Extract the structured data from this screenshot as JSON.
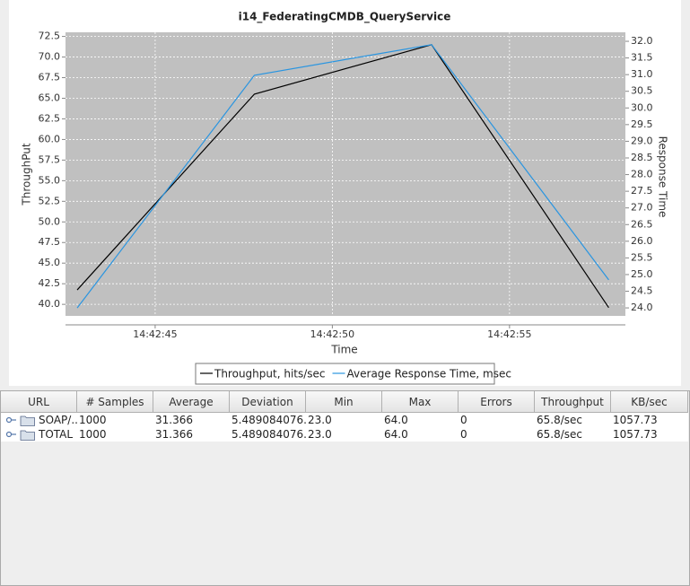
{
  "chart_data": {
    "type": "line",
    "title": "i14_FederatingCMDB_QueryService",
    "x_label": "Time",
    "y_label": "ThroughPut",
    "y2_label": "Response Time",
    "x": [
      42.8,
      47.8,
      52.8,
      57.8
    ],
    "xlim": [
      42.47,
      58.27
    ],
    "xticks": [
      {
        "value": 45,
        "label": "14:42:45"
      },
      {
        "value": 50,
        "label": "14:42:50"
      },
      {
        "value": 55,
        "label": "14:42:55"
      }
    ],
    "ylim": [
      38.6,
      73.0
    ],
    "yticks": [
      {
        "value": 40,
        "label": "40.0"
      },
      42.5,
      {
        "value": 45,
        "label": "45.0"
      },
      47.5,
      {
        "value": 50,
        "label": "50.0"
      },
      52.5,
      {
        "value": 55,
        "label": "55.0"
      },
      57.5,
      {
        "value": 60,
        "label": "60.0"
      },
      62.5,
      {
        "value": 65,
        "label": "65.0"
      },
      67.5,
      {
        "value": 70,
        "label": "70.0"
      },
      72.5
    ],
    "y2lim": [
      23.76,
      32.27
    ],
    "y2ticks": [
      {
        "value": 24,
        "label": "24.0"
      },
      24.5,
      {
        "value": 25,
        "label": "25.0"
      },
      25.5,
      {
        "value": 26,
        "label": "26.0"
      },
      26.5,
      {
        "value": 27,
        "label": "27.0"
      },
      27.5,
      {
        "value": 28,
        "label": "28.0"
      },
      28.5,
      {
        "value": 29,
        "label": "29.0"
      },
      29.5,
      {
        "value": 30,
        "label": "30.0"
      },
      30.5,
      {
        "value": 31,
        "label": "31.0"
      },
      31.5,
      {
        "value": 32,
        "label": "32.0"
      }
    ],
    "grid": true,
    "legend": "bottom",
    "series": [
      {
        "name": "Throughput, hits/sec",
        "color": "#000000",
        "values": [
          41.75,
          65.5,
          71.5,
          39.6
        ]
      },
      {
        "name": "Average Response Time, msec",
        "color": "#2a95e0",
        "axis": "y2",
        "values": [
          24.0,
          30.98,
          31.9,
          24.84
        ]
      }
    ]
  },
  "table": {
    "columns": [
      "URL",
      "# Samples",
      "Average",
      "Deviation",
      "Min",
      "Max",
      "Errors",
      "Throughput",
      "KB/sec"
    ],
    "rows": [
      [
        "SOAP/...",
        "1000",
        "31.366",
        "5.489084076...",
        "23.0",
        "64.0",
        "0",
        "65.8/sec",
        "1057.73"
      ],
      [
        "TOTAL",
        "1000",
        "31.366",
        "5.489084076...",
        "23.0",
        "64.0",
        "0",
        "65.8/sec",
        "1057.73"
      ]
    ]
  }
}
